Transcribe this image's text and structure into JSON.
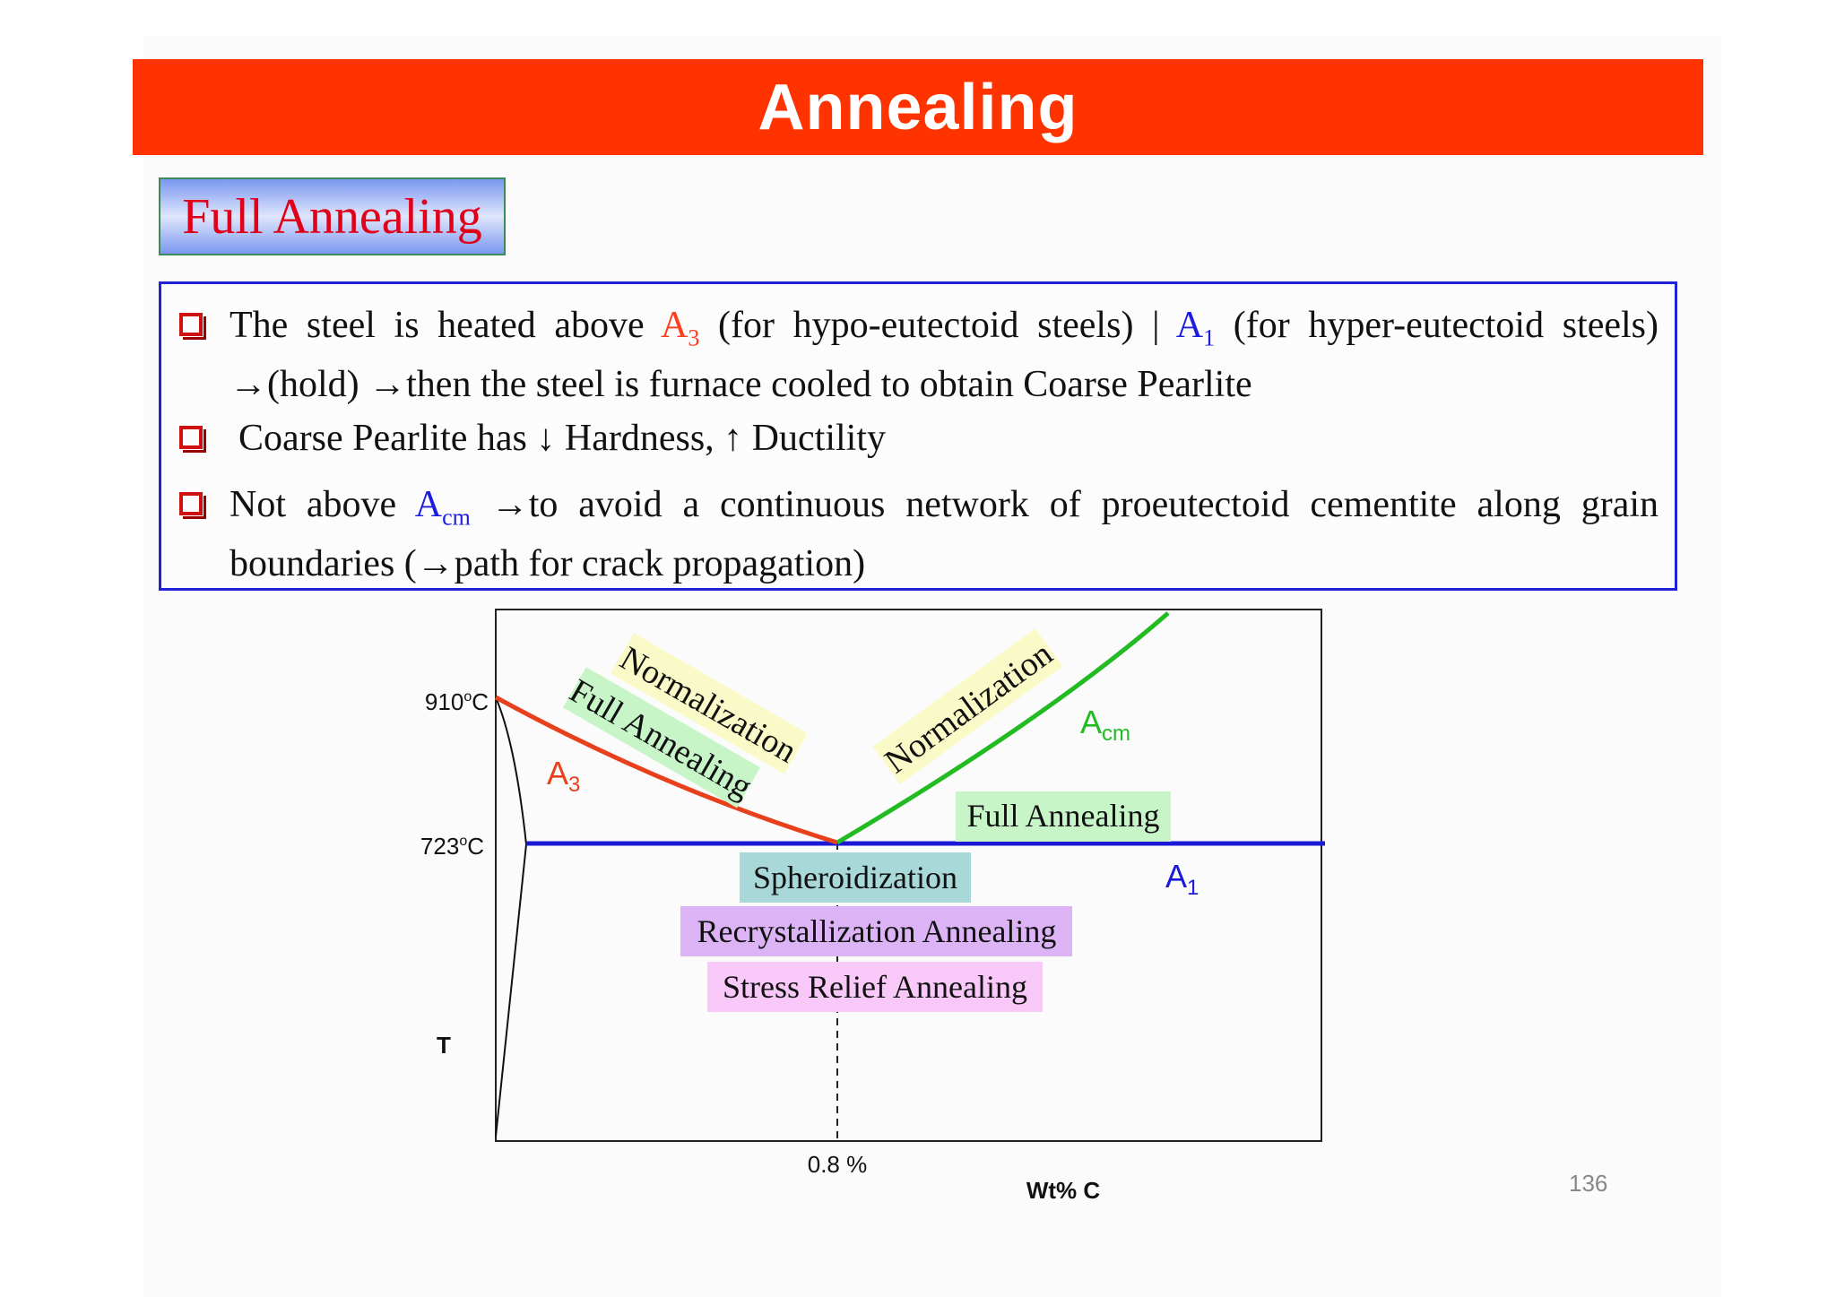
{
  "slide": {
    "title": "Annealing",
    "subtitle": "Full Annealing",
    "page_number": "136"
  },
  "bullets": [
    {
      "parts": [
        "The steel is heated above ",
        "A",
        "3",
        " (for hypo-eutectoid steels) | ",
        "A",
        "1",
        " (for hyper-eutectoid steels) →(hold) →then the steel is furnace cooled to obtain Coarse Pearlite"
      ]
    },
    {
      "text": "Coarse Pearlite has ↓ Hardness, ↑ Ductility"
    },
    {
      "parts": [
        "Not above ",
        "A",
        "cm",
        " →to avoid a continuous network of proeutectoid cementite along grain boundaries (→path for crack propagation)"
      ]
    }
  ],
  "diagram": {
    "y_label": "T",
    "x_label": "Wt% C",
    "temp_910": "910",
    "temp_723": "723",
    "deg_unit": "o",
    "deg_c": "C",
    "comp_08": "0.8 %",
    "line_a3": {
      "main": "A",
      "sub": "3",
      "color": "#e8401c"
    },
    "line_acm": {
      "main": "A",
      "sub": "cm",
      "color": "#22bb22"
    },
    "line_a1": {
      "main": "A",
      "sub": "1",
      "color": "#1a1ad6"
    },
    "labels": {
      "normalization_left": "Normalization",
      "full_annealing_left": "Full Annealing",
      "normalization_right": "Normalization",
      "full_annealing_right": "Full Annealing",
      "spheroidization": "Spheroidization",
      "recrystallization": "Recrystallization Annealing",
      "stress_relief": "Stress Relief Annealing"
    },
    "colors": {
      "normalization_bg": "#fafac8",
      "full_annealing_bg": "#c8f5c8",
      "spheroidization_bg": "#a9d8d8",
      "recrystallization_bg": "#dcb4f5",
      "stress_relief_bg": "#f8c8f8"
    }
  }
}
